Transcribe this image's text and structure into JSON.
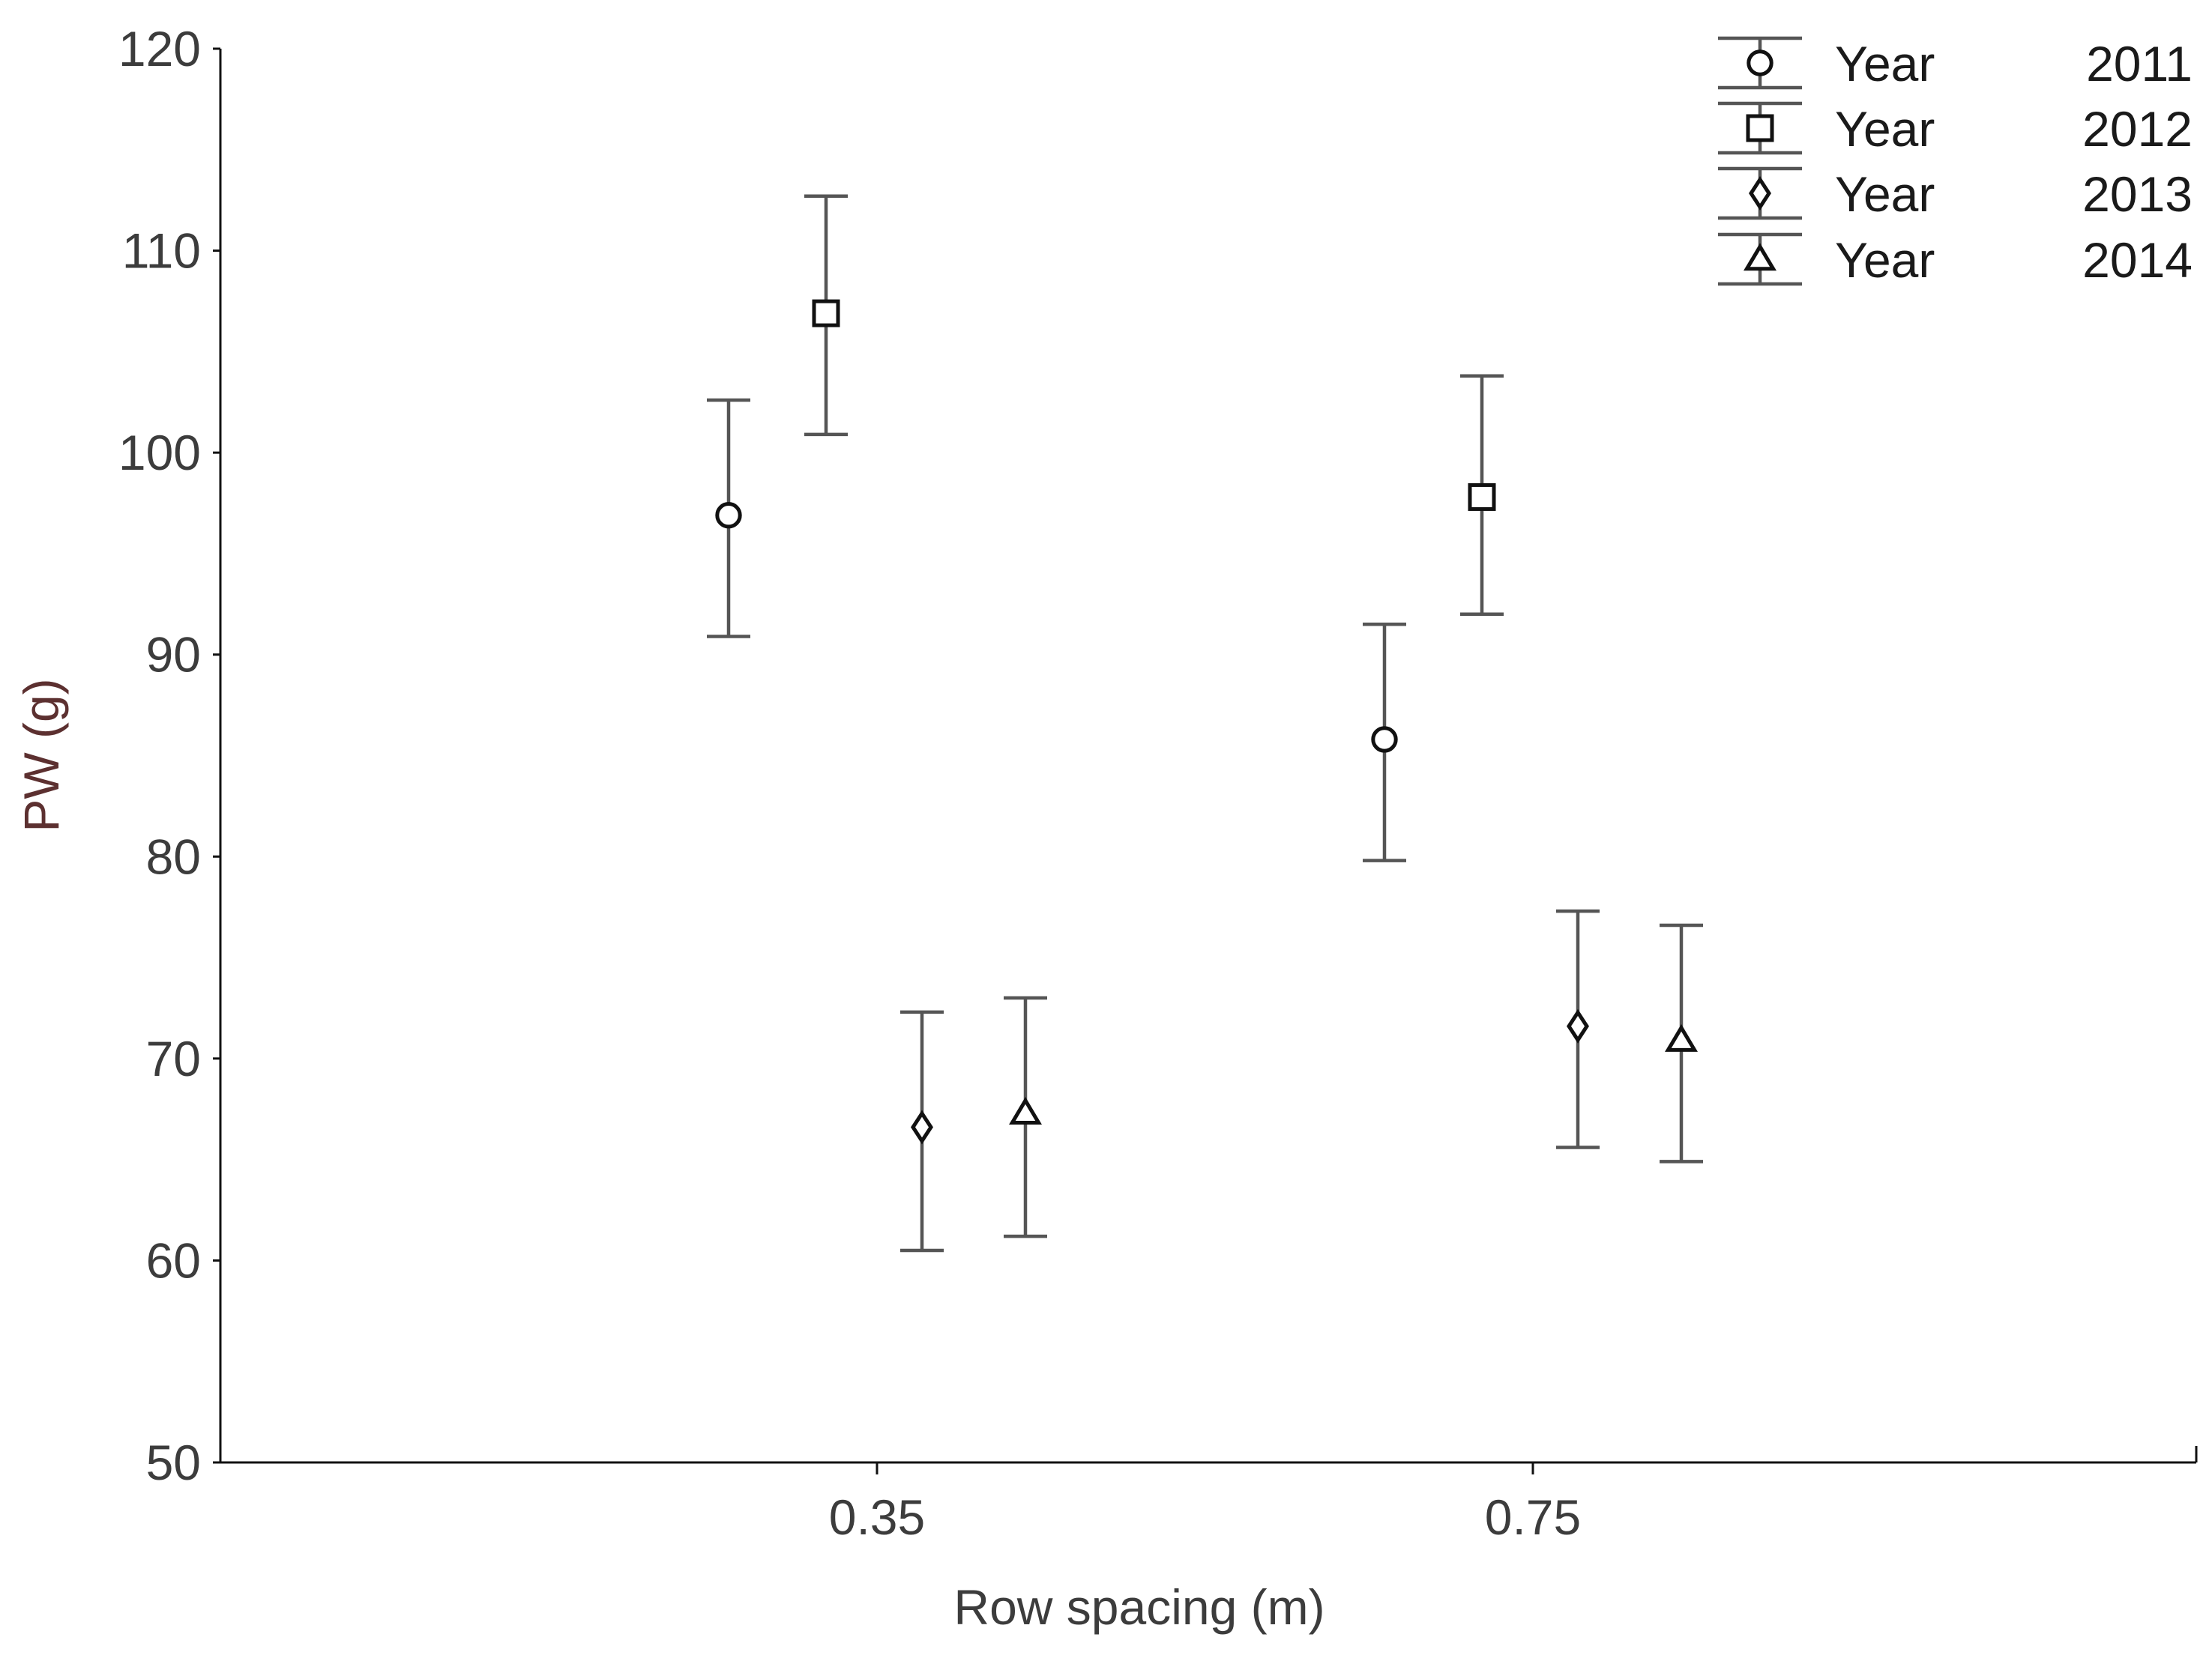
{
  "chart_data": {
    "type": "scatter",
    "xlabel": "Row spacing (m)",
    "ylabel": "PW (g)",
    "ylim": [
      50,
      120
    ],
    "yticks": [
      50,
      60,
      70,
      80,
      90,
      100,
      110,
      120
    ],
    "categories": [
      "0.35",
      "0.75"
    ],
    "grid": false,
    "legend_position": "top-right",
    "series": [
      {
        "name": "Year",
        "year": "2011",
        "marker": "circle",
        "values": [
          96.9,
          85.8
        ],
        "err_low": [
          90.9,
          79.8
        ],
        "err_high": [
          102.6,
          91.5
        ]
      },
      {
        "name": "Year",
        "year": "2012",
        "marker": "square",
        "values": [
          106.9,
          97.8
        ],
        "err_low": [
          100.9,
          92.0
        ],
        "err_high": [
          112.7,
          103.8
        ]
      },
      {
        "name": "Year",
        "year": "2013",
        "marker": "diamond",
        "values": [
          66.6,
          71.6
        ],
        "err_low": [
          60.5,
          65.6
        ],
        "err_high": [
          72.3,
          77.3
        ]
      },
      {
        "name": "Year",
        "year": "2014",
        "marker": "triangle",
        "values": [
          67.3,
          70.9
        ],
        "err_low": [
          61.2,
          64.9
        ],
        "err_high": [
          73.0,
          76.6
        ]
      }
    ]
  }
}
